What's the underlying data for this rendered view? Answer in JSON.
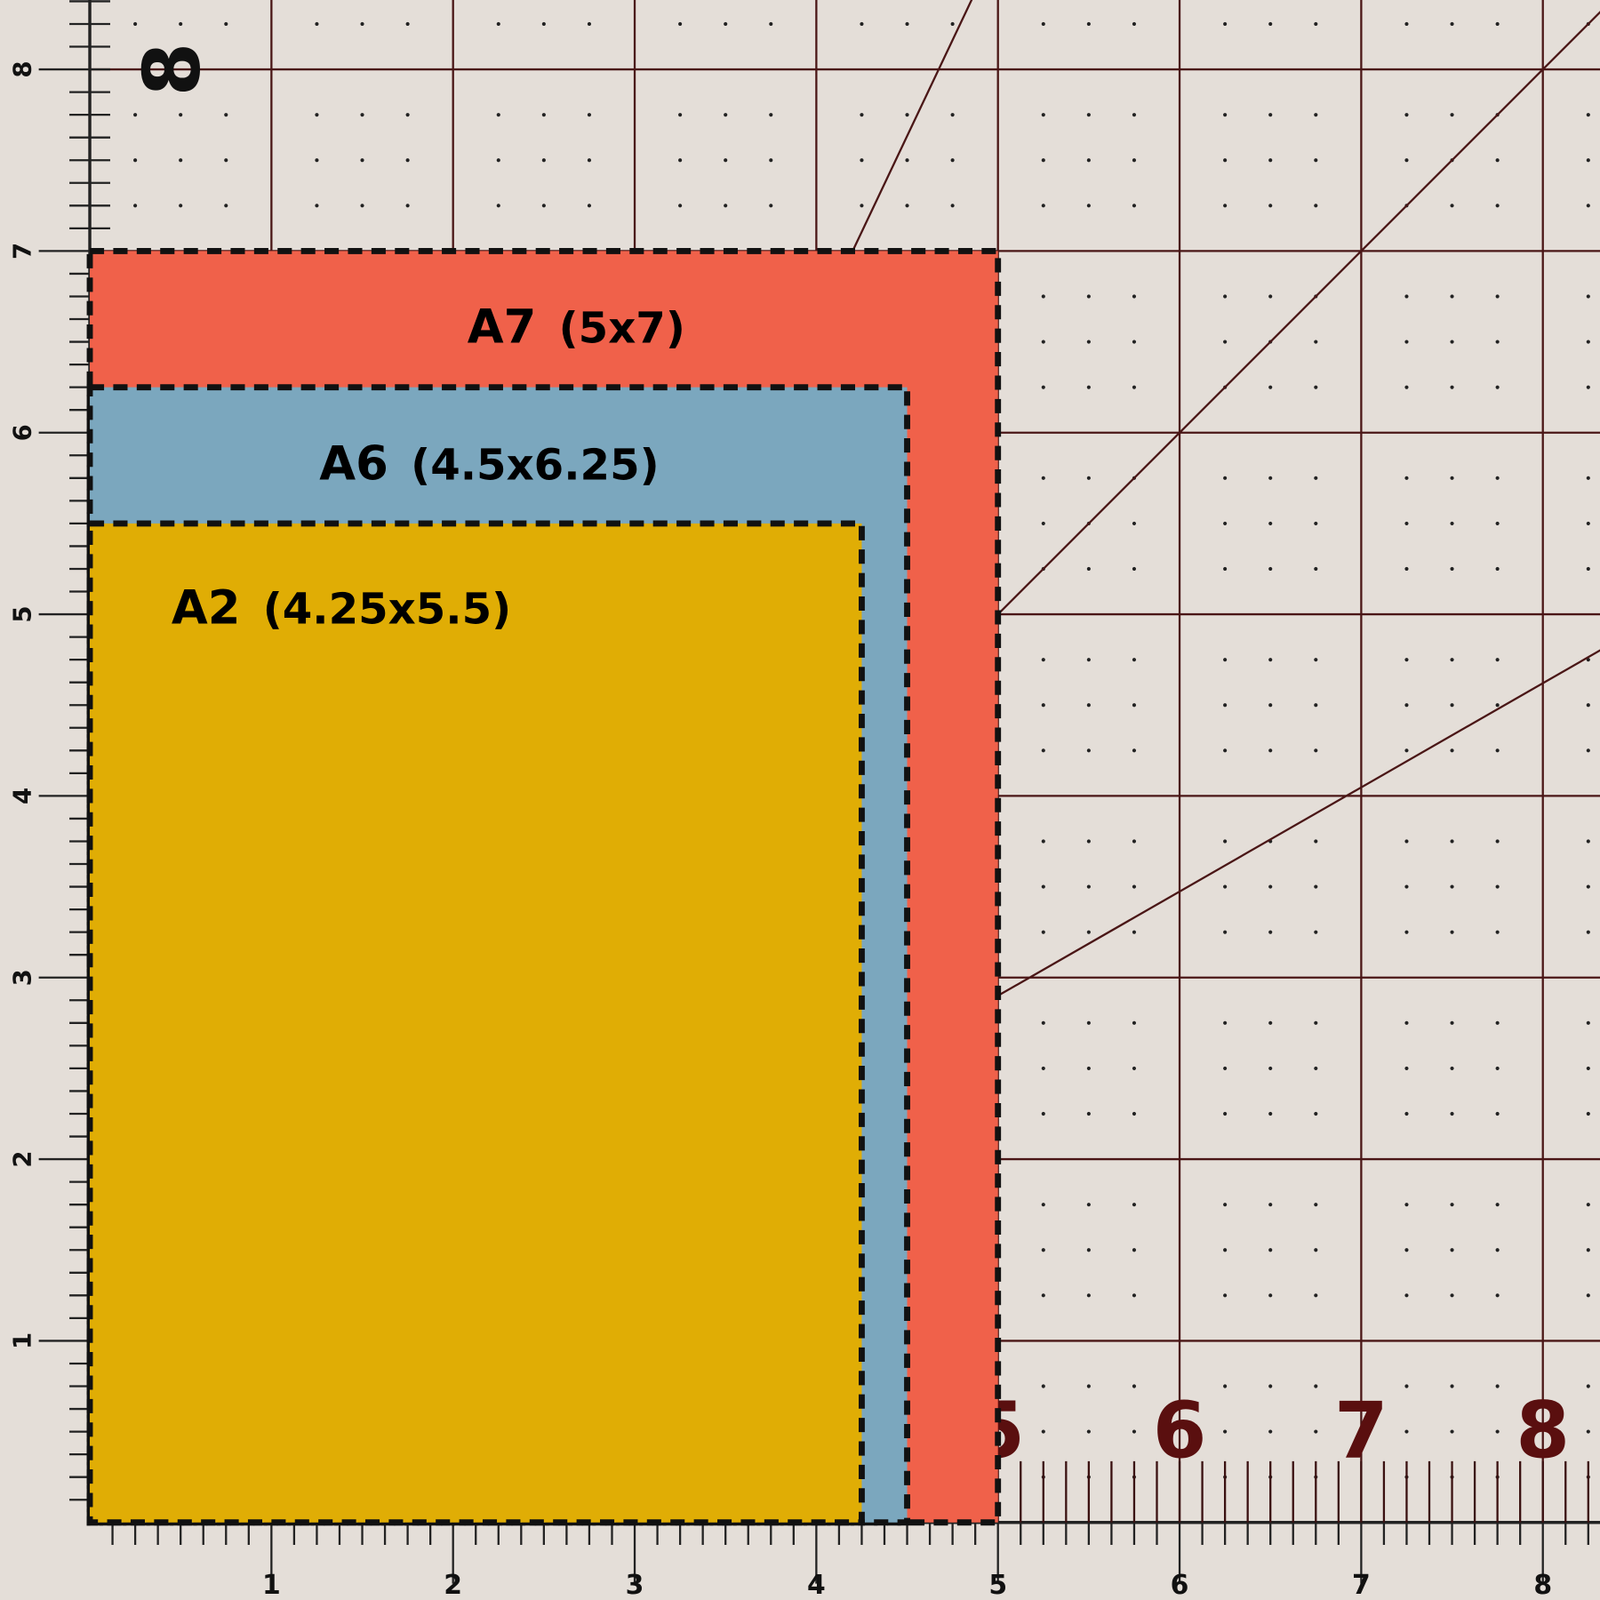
{
  "colors": {
    "mat": "#e4ded8",
    "grid": "#4a1616",
    "mat_numbers": "#5a0f0f",
    "border": "#111111"
  },
  "cards": [
    {
      "name": "A7",
      "size": "(5x7)",
      "width": 5,
      "height": 7,
      "color": "#f0614a"
    },
    {
      "name": "A6",
      "size": "(4.5x6.25)",
      "width": 4.5,
      "height": 6.25,
      "color": "#7ba7be"
    },
    {
      "name": "A2",
      "size": "(4.25x5.5)",
      "width": 4.25,
      "height": 5.5,
      "color": "#e0ad05"
    }
  ],
  "ruler": {
    "bottom_labels": [
      "1",
      "2",
      "3",
      "4",
      "5",
      "6",
      "7",
      "8"
    ],
    "left_labels": [
      "1",
      "2",
      "3",
      "4",
      "5",
      "6",
      "7",
      "8"
    ],
    "mat_numbers_bottom": [
      "5",
      "6",
      "7",
      "8"
    ],
    "mat_number_left": "8",
    "unit": "inch"
  }
}
